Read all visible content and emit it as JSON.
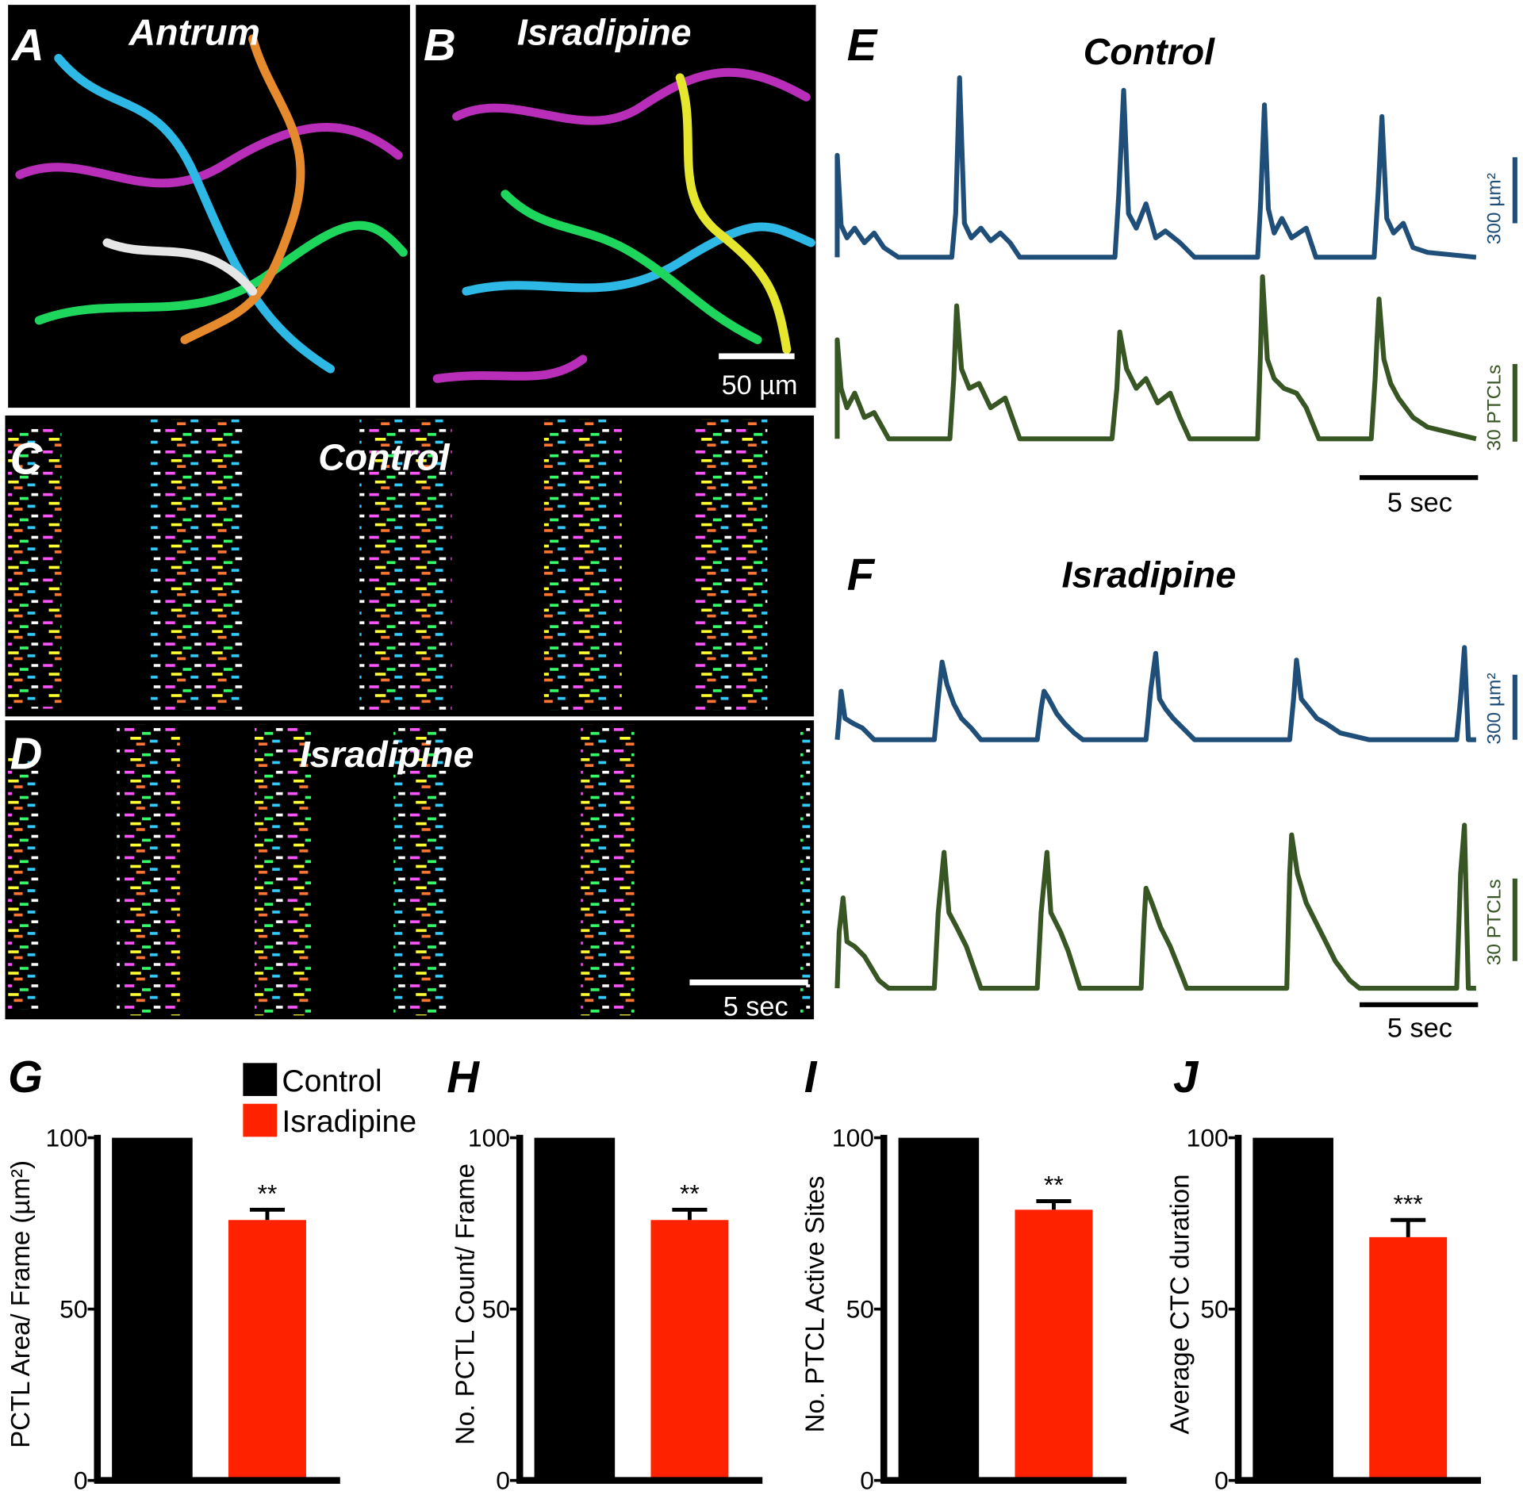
{
  "figure": {
    "panel_letters": [
      "A",
      "B",
      "C",
      "D",
      "E",
      "F",
      "G",
      "H",
      "I",
      "J"
    ],
    "image_titles": [
      "Antrum",
      "Isradipine",
      "Control",
      "Isradipine"
    ],
    "image_scale_label": "50 µm",
    "raster_scale_label": "5 sec",
    "trace_titles": [
      "Control",
      "Isradipine"
    ],
    "area_scale_label": "300 µm²",
    "count_scale_label": "30 PTCLs",
    "time_scale_label": "5 sec"
  },
  "chart_data": [
    {
      "type": "bar",
      "ylabel": "PCTL Area/ Frame (µm²)",
      "series": [
        {
          "name": "Control",
          "color": "#000000",
          "values": [
            100
          ]
        },
        {
          "name": "Isradipine",
          "color": "#ff2200",
          "values": [
            76
          ],
          "errors": [
            3
          ]
        }
      ],
      "annotations": [
        "**"
      ],
      "ylim": [
        0,
        100
      ],
      "yticks": [
        0,
        50,
        100
      ],
      "legend": "top-left"
    },
    {
      "type": "bar",
      "ylabel": "No. PCTL Count/ Frame",
      "series": [
        {
          "color": "#000000",
          "values": [
            100
          ]
        },
        {
          "color": "#ff2200",
          "values": [
            76
          ],
          "errors": [
            3
          ]
        }
      ],
      "annotations": [
        "**"
      ],
      "ylim": [
        0,
        100
      ],
      "yticks": [
        0,
        50,
        100
      ]
    },
    {
      "type": "bar",
      "ylabel": "No. PTCL Active Sites",
      "series": [
        {
          "color": "#000000",
          "values": [
            100
          ]
        },
        {
          "color": "#ff2200",
          "values": [
            79
          ],
          "errors": [
            2.5
          ]
        }
      ],
      "annotations": [
        "**"
      ],
      "ylim": [
        0,
        100
      ],
      "yticks": [
        0,
        50,
        100
      ]
    },
    {
      "type": "bar",
      "ylabel": "Average CTC duration",
      "series": [
        {
          "color": "#000000",
          "values": [
            100
          ]
        },
        {
          "color": "#ff2200",
          "values": [
            71
          ],
          "errors": [
            5
          ]
        }
      ],
      "annotations": [
        "***"
      ],
      "ylim": [
        0,
        100
      ],
      "yticks": [
        0,
        50,
        100
      ]
    }
  ]
}
